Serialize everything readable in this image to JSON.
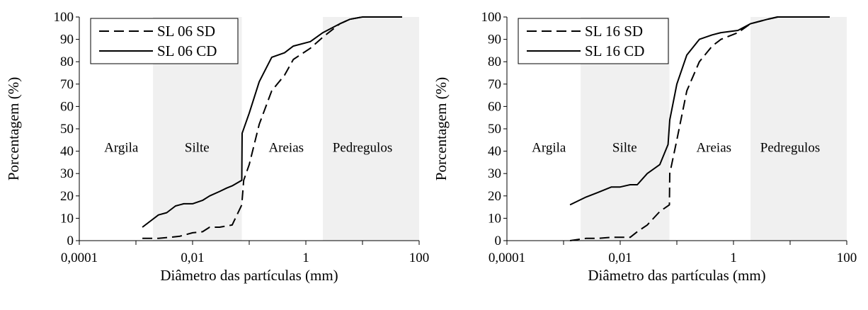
{
  "chart_data": [
    {
      "type": "line",
      "xlabel": "Diâmetro das partículas (mm)",
      "ylabel": "Porcentagem (%)",
      "xscale": "log",
      "xlim": [
        0.0001,
        100
      ],
      "ylim": [
        0,
        100
      ],
      "x_ticks": [
        0.0001,
        0.01,
        1,
        100
      ],
      "x_tick_labels": [
        "0,0001",
        "0,01",
        "1",
        "100"
      ],
      "y_ticks": [
        0,
        10,
        20,
        30,
        40,
        50,
        60,
        70,
        80,
        90,
        100
      ],
      "y_tick_labels": [
        "0",
        "10",
        "20",
        "30",
        "40",
        "50",
        "60",
        "70",
        "80",
        "90",
        "100"
      ],
      "legend_position": "top-left",
      "shaded_bands": [
        [
          0.002,
          0.074
        ],
        [
          2.0,
          100
        ]
      ],
      "regions": [
        {
          "label": "Argila",
          "x": 0.00055,
          "y": 42
        },
        {
          "label": "Silte",
          "x": 0.012,
          "y": 42
        },
        {
          "label": "Areias",
          "x": 0.45,
          "y": 42
        },
        {
          "label": "Pedregulos",
          "x": 10,
          "y": 42
        }
      ],
      "series": [
        {
          "name": "SL 06 SD",
          "style": "dashed",
          "x": [
            0.0013,
            0.0025,
            0.004,
            0.006,
            0.01,
            0.015,
            0.02,
            0.03,
            0.05,
            0.074,
            0.08,
            0.1,
            0.15,
            0.25,
            0.42,
            0.6,
            1.2,
            2.0,
            4.0,
            6.0,
            10,
            20,
            50
          ],
          "y": [
            1,
            1,
            1.5,
            2,
            3.5,
            4,
            6,
            6,
            7,
            16,
            27,
            34,
            52,
            67,
            74,
            81,
            86,
            91,
            97,
            99,
            100,
            100,
            100
          ]
        },
        {
          "name": "SL 06 CD",
          "style": "solid",
          "x": [
            0.0013,
            0.0025,
            0.0035,
            0.005,
            0.007,
            0.01,
            0.015,
            0.02,
            0.03,
            0.04,
            0.05,
            0.074,
            0.075,
            0.1,
            0.15,
            0.25,
            0.42,
            0.6,
            1.2,
            2.0,
            4.0,
            6.0,
            10,
            20,
            50
          ],
          "y": [
            6,
            11.5,
            12.5,
            15.5,
            16.5,
            16.5,
            18,
            20,
            22,
            23.5,
            24.5,
            27,
            48,
            57,
            71,
            82,
            84,
            87,
            89,
            93,
            97,
            99,
            100,
            100,
            100
          ]
        }
      ]
    },
    {
      "type": "line",
      "xlabel": "Diâmetro das partículas (mm)",
      "ylabel": "Porcentagem (%)",
      "xscale": "log",
      "xlim": [
        0.0001,
        100
      ],
      "ylim": [
        0,
        100
      ],
      "x_ticks": [
        0.0001,
        0.01,
        1,
        100
      ],
      "x_tick_labels": [
        "0,0001",
        "0,01",
        "1",
        "100"
      ],
      "y_ticks": [
        0,
        10,
        20,
        30,
        40,
        50,
        60,
        70,
        80,
        90,
        100
      ],
      "y_tick_labels": [
        "0",
        "10",
        "20",
        "30",
        "40",
        "50",
        "60",
        "70",
        "80",
        "90",
        "100"
      ],
      "legend_position": "top-left",
      "shaded_bands": [
        [
          0.002,
          0.074
        ],
        [
          2.0,
          100
        ]
      ],
      "regions": [
        {
          "label": "Argila",
          "x": 0.00055,
          "y": 42
        },
        {
          "label": "Silte",
          "x": 0.012,
          "y": 42
        },
        {
          "label": "Areias",
          "x": 0.45,
          "y": 42
        },
        {
          "label": "Pedregulos",
          "x": 10,
          "y": 42
        }
      ],
      "series": [
        {
          "name": "SL 16 SD",
          "style": "dashed",
          "x": [
            0.0013,
            0.0025,
            0.004,
            0.007,
            0.01,
            0.015,
            0.02,
            0.03,
            0.05,
            0.074,
            0.075,
            0.1,
            0.15,
            0.25,
            0.42,
            0.6,
            1.2,
            2.0,
            4.0,
            6.0,
            10,
            20,
            50
          ],
          "y": [
            0,
            1,
            1,
            1.5,
            1.5,
            1.5,
            4,
            7,
            13,
            16,
            30,
            45,
            67,
            80,
            87,
            90,
            93,
            97,
            99,
            100,
            100,
            100,
            100
          ]
        },
        {
          "name": "SL 16 CD",
          "style": "solid",
          "x": [
            0.0013,
            0.0025,
            0.004,
            0.007,
            0.01,
            0.015,
            0.02,
            0.03,
            0.05,
            0.07,
            0.075,
            0.1,
            0.15,
            0.25,
            0.42,
            0.6,
            1.2,
            2.0,
            4.0,
            6.0,
            10,
            20,
            50
          ],
          "y": [
            16,
            19.5,
            21.5,
            24,
            24,
            25,
            25,
            30,
            34,
            43,
            54,
            70,
            83,
            90,
            92,
            93,
            94,
            97,
            99,
            100,
            100,
            100,
            100
          ]
        }
      ]
    }
  ]
}
